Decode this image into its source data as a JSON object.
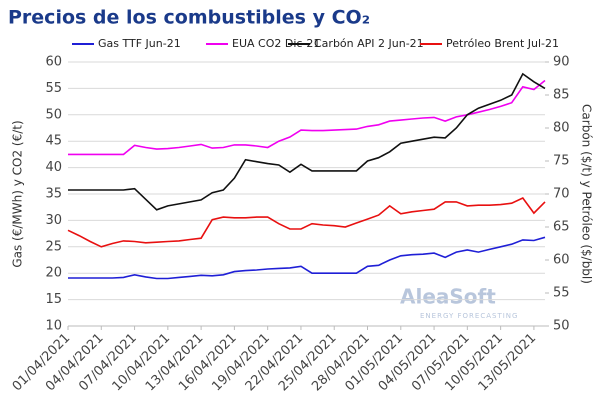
{
  "chart_data": {
    "type": "line",
    "title": "Precios de los combustibles y CO₂",
    "ylabel": "Gas (€/MWh) y CO2 (€/t)",
    "y2label": "Carbón ($/t) y Petróleo ($/bbl)",
    "watermark": [
      "AleaSoft",
      "ENERGY FORECASTING"
    ],
    "categories": [
      "01/04/2021",
      null,
      null,
      "04/04/2021",
      null,
      null,
      "07/04/2021",
      null,
      null,
      "10/04/2021",
      null,
      null,
      "13/04/2021",
      null,
      null,
      "16/04/2021",
      null,
      null,
      "19/04/2021",
      null,
      null,
      "22/04/2021",
      null,
      null,
      "25/04/2021",
      null,
      null,
      "28/04/2021",
      null,
      null,
      "01/05/2021",
      null,
      null,
      "04/05/2021",
      null,
      null,
      "07/05/2021",
      null,
      null,
      "10/05/2021",
      null,
      null,
      "13/05/2021",
      null
    ],
    "ylim": [
      10,
      60
    ],
    "yticks": [
      10,
      15,
      20,
      25,
      30,
      35,
      40,
      45,
      50,
      55,
      60
    ],
    "y2lim": [
      50,
      90
    ],
    "y2ticks": [
      50,
      55,
      60,
      65,
      70,
      75,
      80,
      85,
      90
    ],
    "grid": true,
    "legend": "top",
    "series": [
      {
        "name": "Gas TTF Jun-21",
        "color": "#1f1fd6",
        "values": [
          19.1,
          19.1,
          19.1,
          19.1,
          19.1,
          19.2,
          19.7,
          19.3,
          19.0,
          19.0,
          19.2,
          19.4,
          19.6,
          19.5,
          19.7,
          20.3,
          20.5,
          20.6,
          20.8,
          20.9,
          21.0,
          21.3,
          20.0,
          20.0,
          20.0,
          20.0,
          20.0,
          21.3,
          21.5,
          22.5,
          23.3,
          23.5,
          23.6,
          23.8,
          23.0,
          24.0,
          24.4,
          24.0,
          24.5,
          25.0,
          25.5,
          26.3,
          26.2,
          26.8
        ]
      },
      {
        "name": "EUA CO2 Dic-21",
        "color": "#f000f0",
        "values": [
          42.5,
          42.5,
          42.5,
          42.5,
          42.5,
          42.5,
          44.2,
          43.8,
          43.5,
          43.6,
          43.8,
          44.1,
          44.4,
          43.7,
          43.8,
          44.3,
          44.3,
          44.1,
          43.8,
          45.0,
          45.8,
          47.1,
          47.0,
          47.0,
          47.1,
          47.2,
          47.3,
          47.8,
          48.1,
          48.8,
          49.0,
          49.2,
          49.4,
          49.5,
          48.8,
          49.6,
          50.0,
          50.5,
          51.0,
          51.6,
          52.3,
          55.3,
          54.8,
          56.5
        ]
      },
      {
        "name": "Carbón API 2 Jun-21",
        "color": "#111111",
        "axis": "y2",
        "values": [
          70.6,
          70.6,
          70.6,
          70.6,
          70.6,
          70.6,
          70.8,
          69.2,
          67.6,
          68.2,
          68.5,
          68.8,
          69.1,
          70.2,
          70.6,
          72.4,
          75.2,
          74.9,
          74.6,
          74.4,
          73.3,
          74.5,
          73.5,
          73.5,
          73.5,
          73.5,
          73.5,
          75.0,
          75.5,
          76.4,
          77.7,
          78.0,
          78.3,
          78.6,
          78.5,
          80.0,
          82.0,
          83.0,
          83.6,
          84.2,
          85.0,
          88.2,
          87.0,
          86.0
        ]
      },
      {
        "name": "Petróleo Brent Jul-21",
        "color": "#e81010",
        "axis": "y2",
        "values": [
          64.5,
          63.7,
          62.8,
          62.0,
          62.5,
          62.9,
          62.8,
          62.6,
          62.7,
          62.8,
          62.9,
          63.1,
          63.3,
          66.1,
          66.5,
          66.4,
          66.4,
          66.5,
          66.5,
          65.5,
          64.7,
          64.7,
          65.5,
          65.3,
          65.2,
          65.0,
          65.6,
          66.2,
          66.8,
          68.2,
          67.0,
          67.3,
          67.5,
          67.7,
          68.8,
          68.8,
          68.2,
          68.3,
          68.3,
          68.4,
          68.6,
          69.4,
          67.1,
          68.8
        ]
      }
    ]
  }
}
